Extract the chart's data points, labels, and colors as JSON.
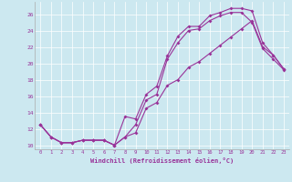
{
  "xlabel": "Windchill (Refroidissement éolien,°C)",
  "bg_color": "#cce8f0",
  "line_color": "#993399",
  "xlim": [
    -0.5,
    23.5
  ],
  "ylim": [
    9.5,
    27.5
  ],
  "xticks": [
    0,
    1,
    2,
    3,
    4,
    5,
    6,
    7,
    8,
    9,
    10,
    11,
    12,
    13,
    14,
    15,
    16,
    17,
    18,
    19,
    20,
    21,
    22,
    23
  ],
  "yticks": [
    10,
    12,
    14,
    16,
    18,
    20,
    22,
    24,
    26
  ],
  "series1_x": [
    0,
    1,
    2,
    3,
    4,
    5,
    6,
    7,
    8,
    9,
    10,
    11,
    12,
    13,
    14,
    15,
    16,
    17,
    18,
    19,
    20,
    21,
    22,
    23
  ],
  "series1_y": [
    12.5,
    11.0,
    10.3,
    10.3,
    10.6,
    10.6,
    10.6,
    10.0,
    13.5,
    13.2,
    16.2,
    17.2,
    20.9,
    23.3,
    24.5,
    24.5,
    25.8,
    26.2,
    26.7,
    26.7,
    26.4,
    22.5,
    21.0,
    19.3
  ],
  "series2_x": [
    0,
    1,
    2,
    3,
    4,
    5,
    6,
    7,
    8,
    9,
    10,
    11,
    12,
    13,
    14,
    15,
    16,
    17,
    18,
    19,
    20,
    21,
    22,
    23
  ],
  "series2_y": [
    12.5,
    11.0,
    10.3,
    10.3,
    10.6,
    10.6,
    10.6,
    10.0,
    11.0,
    12.5,
    15.5,
    16.2,
    20.5,
    22.5,
    24.0,
    24.2,
    25.2,
    25.8,
    26.2,
    26.2,
    25.0,
    21.8,
    20.5,
    19.2
  ],
  "series3_x": [
    0,
    1,
    2,
    3,
    4,
    5,
    6,
    7,
    8,
    9,
    10,
    11,
    12,
    13,
    14,
    15,
    16,
    17,
    18,
    19,
    20,
    21,
    22,
    23
  ],
  "series3_y": [
    12.5,
    11.0,
    10.3,
    10.3,
    10.6,
    10.6,
    10.6,
    10.0,
    11.0,
    11.5,
    14.5,
    15.2,
    17.3,
    18.0,
    19.5,
    20.2,
    21.2,
    22.2,
    23.2,
    24.2,
    25.2,
    22.0,
    21.0,
    19.3
  ]
}
